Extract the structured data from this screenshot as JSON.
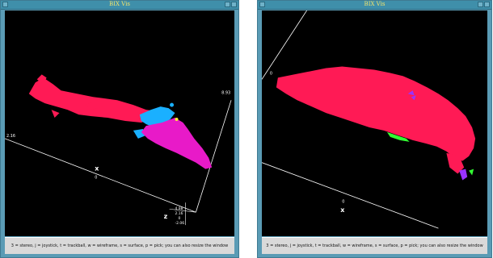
{
  "windows": [
    {
      "title": "BIX Vis",
      "footer": "3 = stereo, j = joystick, t = trackball, w = wireframe, s = surface, p = pick; you can also resize the window",
      "axes": {
        "x_letter": "x",
        "x_zero": "0",
        "x_left_value": "2.16",
        "y_top_value": "8.93",
        "z_letter": "z",
        "z_values": [
          "4.98",
          "2.16",
          "0",
          "-2.06"
        ]
      },
      "colors": {
        "main_structure": "#ff1a55",
        "cyan_region": "#1ab0ff",
        "magenta_region": "#e81ac8"
      }
    },
    {
      "title": "BIX Vis",
      "footer": "3 = stereo, j = joystick, t = trackball, w = wireframe, s = surface, p = pick; you can also resize the window",
      "axes": {
        "x_letter": "x",
        "x_zero": "0",
        "left_value": "0"
      },
      "colors": {
        "main_structure": "#ff1a55",
        "green_region": "#33ff33",
        "purple_region": "#9933ff"
      }
    }
  ]
}
